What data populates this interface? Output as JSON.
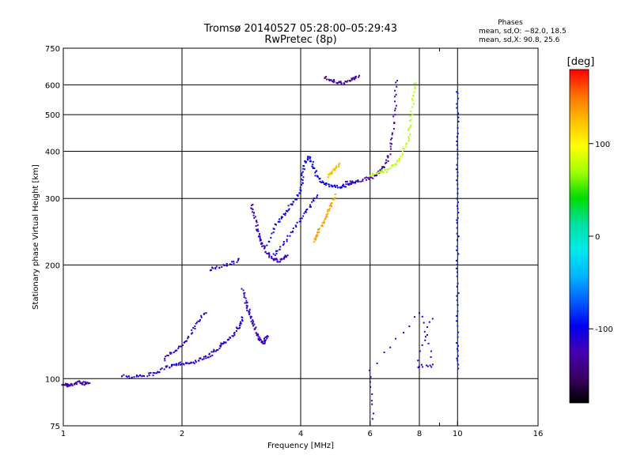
{
  "chart_data": {
    "type": "scatter",
    "title": "Tromsø 20140527 05:28:00–05:29:43",
    "subtitle": "RwPretec (8p)",
    "xlabel": "Frequency [MHz]",
    "ylabel": "Stationary phase Virtual Height [km]",
    "x_scale": "log",
    "y_scale": "log",
    "xlim": [
      1,
      16
    ],
    "ylim": [
      75,
      750
    ],
    "x_ticks": [
      1,
      2,
      4,
      6,
      8,
      10,
      16
    ],
    "x_minor_ticks": [
      9
    ],
    "y_ticks": [
      75,
      100,
      200,
      300,
      400,
      500,
      600,
      750
    ],
    "grid": true,
    "legend_block": {
      "title": "Phases",
      "line_o": "mean, sd,O: −82.0, 18.5",
      "line_x": "mean, sd,X:  90.8, 25.6"
    },
    "colorbar": {
      "unit_label": "[deg]",
      "range": [
        -180,
        180
      ],
      "ticks": [
        100,
        0,
        -100
      ],
      "colormap": [
        "#000000",
        "#3a0063",
        "#4400b4",
        "#0000ee",
        "#0060ff",
        "#00b8ff",
        "#00eaea",
        "#00e0a0",
        "#00dc00",
        "#a0ff00",
        "#ffff00",
        "#ffc000",
        "#ff7000",
        "#ff0000"
      ]
    },
    "traces": [
      {
        "phase": -125,
        "points": [
          [
            1.0,
            97
          ],
          [
            1.02,
            96
          ],
          [
            1.04,
            96
          ],
          [
            1.07,
            97
          ],
          [
            1.1,
            98
          ],
          [
            1.13,
            97
          ],
          [
            1.16,
            98
          ]
        ]
      },
      {
        "phase": -110,
        "points": [
          [
            1.4,
            102
          ],
          [
            1.5,
            101
          ],
          [
            1.6,
            102
          ],
          [
            1.7,
            103
          ],
          [
            1.8,
            106
          ],
          [
            1.9,
            109
          ],
          [
            2.0,
            110
          ],
          [
            2.1,
            109
          ],
          [
            2.2,
            112
          ],
          [
            2.3,
            114
          ],
          [
            2.4,
            117
          ],
          [
            2.5,
            122
          ],
          [
            2.6,
            126
          ],
          [
            2.7,
            131
          ],
          [
            2.8,
            138
          ],
          [
            2.85,
            145
          ]
        ]
      },
      {
        "phase": -115,
        "points": [
          [
            1.8,
            112
          ],
          [
            1.9,
            118
          ],
          [
            2.0,
            123
          ],
          [
            2.1,
            131
          ],
          [
            2.2,
            142
          ],
          [
            2.3,
            150
          ]
        ]
      },
      {
        "phase": -112,
        "points": [
          [
            2.35,
            195
          ],
          [
            2.5,
            198
          ],
          [
            2.65,
            201
          ],
          [
            2.8,
            206
          ]
        ]
      },
      {
        "phase": -118,
        "points": [
          [
            2.85,
            172
          ],
          [
            2.9,
            160
          ],
          [
            2.95,
            152
          ],
          [
            3.0,
            145
          ],
          [
            3.05,
            137
          ],
          [
            3.1,
            131
          ],
          [
            3.15,
            127
          ],
          [
            3.2,
            124
          ],
          [
            3.25,
            126
          ],
          [
            3.3,
            130
          ]
        ]
      },
      {
        "phase": -122,
        "points": [
          [
            3.0,
            290
          ],
          [
            3.05,
            270
          ],
          [
            3.1,
            250
          ],
          [
            3.15,
            235
          ],
          [
            3.2,
            225
          ],
          [
            3.3,
            215
          ],
          [
            3.4,
            208
          ],
          [
            3.5,
            205
          ],
          [
            3.6,
            207
          ],
          [
            3.7,
            212
          ]
        ]
      },
      {
        "phase": -100,
        "points": [
          [
            3.3,
            225
          ],
          [
            3.45,
            255
          ],
          [
            3.6,
            270
          ],
          [
            3.75,
            285
          ],
          [
            3.9,
            300
          ],
          [
            4.0,
            318
          ],
          [
            4.05,
            345
          ],
          [
            4.1,
            375
          ],
          [
            4.2,
            385
          ],
          [
            4.3,
            368
          ],
          [
            4.4,
            345
          ],
          [
            4.5,
            332
          ],
          [
            4.7,
            325
          ],
          [
            4.9,
            322
          ],
          [
            5.1,
            323
          ],
          [
            5.3,
            326
          ],
          [
            5.5,
            330
          ]
        ]
      },
      {
        "phase": -105,
        "points": [
          [
            3.4,
            212
          ],
          [
            3.6,
            225
          ],
          [
            3.8,
            245
          ],
          [
            4.0,
            265
          ],
          [
            4.2,
            285
          ],
          [
            4.4,
            305
          ]
        ]
      },
      {
        "phase": 135,
        "points": [
          [
            4.3,
            232
          ],
          [
            4.4,
            240
          ],
          [
            4.5,
            252
          ],
          [
            4.6,
            264
          ],
          [
            4.7,
            278
          ],
          [
            4.8,
            292
          ],
          [
            4.9,
            305
          ]
        ]
      },
      {
        "phase": 125,
        "points": [
          [
            4.7,
            342
          ],
          [
            4.8,
            352
          ],
          [
            4.9,
            362
          ],
          [
            5.0,
            370
          ]
        ]
      },
      {
        "phase": -125,
        "points": [
          [
            5.2,
            330
          ],
          [
            5.5,
            333
          ],
          [
            5.8,
            337
          ],
          [
            6.1,
            342
          ],
          [
            6.3,
            350
          ],
          [
            6.5,
            362
          ],
          [
            6.7,
            390
          ],
          [
            6.85,
            440
          ],
          [
            6.95,
            520
          ],
          [
            7.0,
            620
          ]
        ]
      },
      {
        "phase": 75,
        "points": [
          [
            6.0,
            345
          ],
          [
            6.3,
            350
          ],
          [
            6.6,
            356
          ],
          [
            6.9,
            366
          ],
          [
            7.2,
            385
          ],
          [
            7.45,
            420
          ],
          [
            7.6,
            470
          ],
          [
            7.7,
            540
          ],
          [
            7.8,
            610
          ]
        ]
      },
      {
        "phase": -135,
        "points": [
          [
            4.6,
            630
          ],
          [
            4.8,
            615
          ],
          [
            5.0,
            608
          ],
          [
            5.2,
            610
          ],
          [
            5.4,
            622
          ],
          [
            5.6,
            635
          ]
        ]
      },
      {
        "phase": -90,
        "points": [
          [
            10.0,
            580
          ],
          [
            10.0,
            460
          ],
          [
            10.0,
            370
          ],
          [
            10.0,
            300
          ],
          [
            10.0,
            250
          ],
          [
            10.0,
            200
          ],
          [
            10.0,
            160
          ],
          [
            10.0,
            125
          ],
          [
            10.0,
            106
          ]
        ]
      },
      {
        "phase": -110,
        "points": [
          [
            6.1,
            78
          ],
          [
            6.0,
            105
          ],
          [
            8.0,
            150
          ],
          [
            8.7,
            108
          ],
          [
            7.9,
            108
          ],
          [
            8.6,
            145
          ]
        ]
      }
    ]
  }
}
